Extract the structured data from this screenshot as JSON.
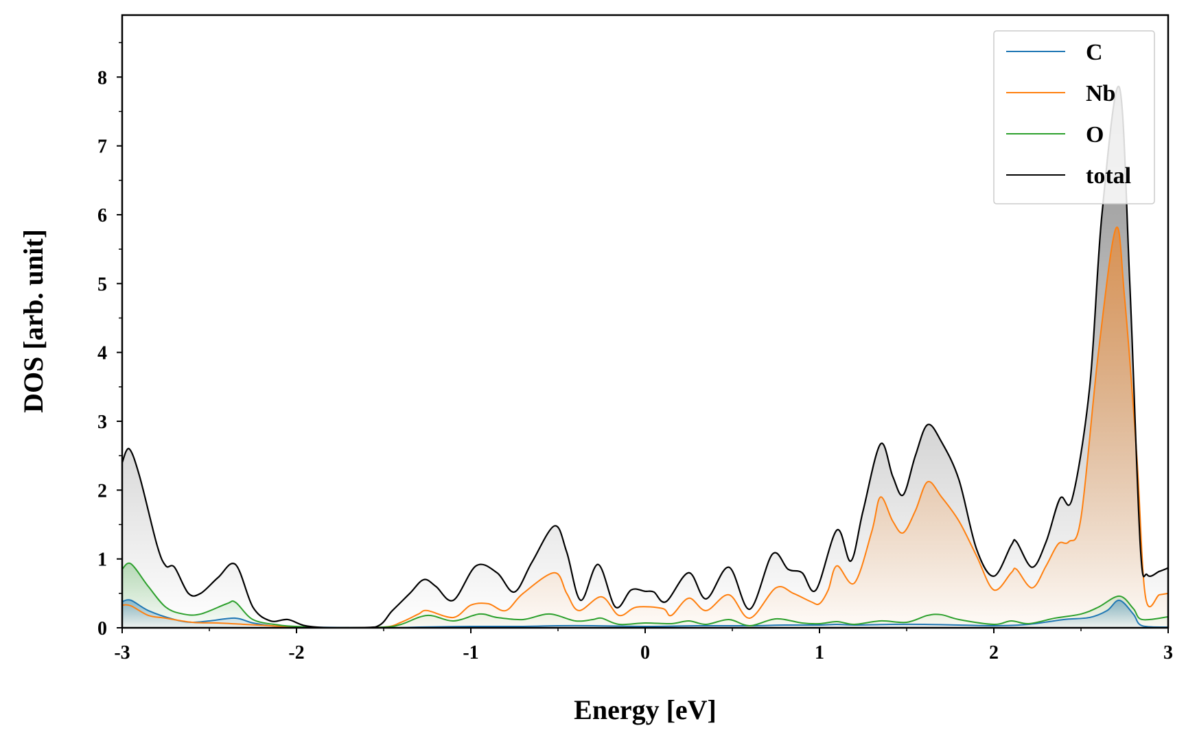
{
  "chart_data": {
    "type": "line",
    "xlabel": "Energy [eV]",
    "ylabel": "DOS [arb. unit]",
    "xlim": [
      -3,
      3
    ],
    "ylim": [
      0,
      8.9
    ],
    "x_ticks": [
      "-3",
      "-2",
      "-1",
      "0",
      "1",
      "2",
      "3"
    ],
    "y_ticks": [
      "0",
      "1",
      "2",
      "3",
      "4",
      "5",
      "6",
      "7",
      "8"
    ],
    "grid": false,
    "legend_position": "top-right",
    "filled_under_curves": true,
    "series": [
      {
        "name": "C",
        "color": "#1f77b4",
        "points": [
          [
            -3.0,
            0.38
          ],
          [
            -2.95,
            0.4
          ],
          [
            -2.85,
            0.25
          ],
          [
            -2.7,
            0.12
          ],
          [
            -2.6,
            0.08
          ],
          [
            -2.5,
            0.1
          ],
          [
            -2.35,
            0.14
          ],
          [
            -2.25,
            0.07
          ],
          [
            -2.1,
            0.02
          ],
          [
            -1.95,
            0.01
          ],
          [
            -1.5,
            0.0
          ],
          [
            -1.3,
            0.01
          ],
          [
            -1.0,
            0.02
          ],
          [
            -0.7,
            0.02
          ],
          [
            -0.5,
            0.03
          ],
          [
            -0.3,
            0.03
          ],
          [
            0.0,
            0.02
          ],
          [
            0.3,
            0.03
          ],
          [
            0.6,
            0.03
          ],
          [
            0.8,
            0.04
          ],
          [
            1.0,
            0.04
          ],
          [
            1.1,
            0.05
          ],
          [
            1.2,
            0.04
          ],
          [
            1.4,
            0.05
          ],
          [
            1.6,
            0.05
          ],
          [
            1.8,
            0.04
          ],
          [
            2.0,
            0.03
          ],
          [
            2.2,
            0.05
          ],
          [
            2.4,
            0.12
          ],
          [
            2.55,
            0.15
          ],
          [
            2.65,
            0.25
          ],
          [
            2.72,
            0.4
          ],
          [
            2.8,
            0.2
          ],
          [
            2.85,
            0.03
          ],
          [
            3.0,
            0.01
          ]
        ]
      },
      {
        "name": "Nb",
        "color": "#ff7f0e",
        "points": [
          [
            -3.0,
            0.33
          ],
          [
            -2.95,
            0.32
          ],
          [
            -2.85,
            0.18
          ],
          [
            -2.75,
            0.14
          ],
          [
            -2.6,
            0.08
          ],
          [
            -2.45,
            0.07
          ],
          [
            -2.3,
            0.05
          ],
          [
            -2.15,
            0.03
          ],
          [
            -2.0,
            0.01
          ],
          [
            -1.8,
            0.0
          ],
          [
            -1.5,
            0.01
          ],
          [
            -1.4,
            0.08
          ],
          [
            -1.3,
            0.2
          ],
          [
            -1.25,
            0.25
          ],
          [
            -1.1,
            0.15
          ],
          [
            -1.0,
            0.33
          ],
          [
            -0.9,
            0.35
          ],
          [
            -0.8,
            0.25
          ],
          [
            -0.7,
            0.5
          ],
          [
            -0.52,
            0.8
          ],
          [
            -0.45,
            0.5
          ],
          [
            -0.38,
            0.25
          ],
          [
            -0.25,
            0.45
          ],
          [
            -0.15,
            0.18
          ],
          [
            -0.05,
            0.3
          ],
          [
            0.1,
            0.28
          ],
          [
            0.15,
            0.18
          ],
          [
            0.25,
            0.43
          ],
          [
            0.35,
            0.25
          ],
          [
            0.48,
            0.48
          ],
          [
            0.6,
            0.14
          ],
          [
            0.75,
            0.58
          ],
          [
            0.85,
            0.5
          ],
          [
            0.95,
            0.38
          ],
          [
            1.0,
            0.35
          ],
          [
            1.05,
            0.55
          ],
          [
            1.1,
            0.9
          ],
          [
            1.2,
            0.65
          ],
          [
            1.3,
            1.4
          ],
          [
            1.35,
            1.9
          ],
          [
            1.42,
            1.55
          ],
          [
            1.48,
            1.38
          ],
          [
            1.55,
            1.7
          ],
          [
            1.62,
            2.12
          ],
          [
            1.7,
            1.9
          ],
          [
            1.8,
            1.55
          ],
          [
            1.9,
            1.05
          ],
          [
            2.0,
            0.55
          ],
          [
            2.1,
            0.8
          ],
          [
            2.13,
            0.85
          ],
          [
            2.22,
            0.58
          ],
          [
            2.3,
            0.9
          ],
          [
            2.37,
            1.22
          ],
          [
            2.43,
            1.25
          ],
          [
            2.5,
            1.6
          ],
          [
            2.6,
            4.0
          ],
          [
            2.7,
            5.8
          ],
          [
            2.75,
            4.8
          ],
          [
            2.82,
            2.5
          ],
          [
            2.87,
            0.45
          ],
          [
            2.95,
            0.48
          ],
          [
            3.0,
            0.5
          ]
        ]
      },
      {
        "name": "O",
        "color": "#2ca02c",
        "points": [
          [
            -3.0,
            0.85
          ],
          [
            -2.95,
            0.93
          ],
          [
            -2.85,
            0.6
          ],
          [
            -2.75,
            0.3
          ],
          [
            -2.65,
            0.2
          ],
          [
            -2.55,
            0.2
          ],
          [
            -2.4,
            0.35
          ],
          [
            -2.35,
            0.37
          ],
          [
            -2.25,
            0.12
          ],
          [
            -2.1,
            0.04
          ],
          [
            -2.0,
            0.02
          ],
          [
            -1.8,
            0.0
          ],
          [
            -1.5,
            0.01
          ],
          [
            -1.4,
            0.05
          ],
          [
            -1.25,
            0.18
          ],
          [
            -1.1,
            0.1
          ],
          [
            -0.95,
            0.2
          ],
          [
            -0.85,
            0.15
          ],
          [
            -0.7,
            0.12
          ],
          [
            -0.55,
            0.2
          ],
          [
            -0.4,
            0.1
          ],
          [
            -0.3,
            0.12
          ],
          [
            -0.25,
            0.14
          ],
          [
            -0.15,
            0.05
          ],
          [
            0.0,
            0.07
          ],
          [
            0.15,
            0.06
          ],
          [
            0.25,
            0.1
          ],
          [
            0.35,
            0.05
          ],
          [
            0.48,
            0.12
          ],
          [
            0.6,
            0.03
          ],
          [
            0.75,
            0.13
          ],
          [
            0.9,
            0.07
          ],
          [
            1.0,
            0.06
          ],
          [
            1.1,
            0.09
          ],
          [
            1.2,
            0.05
          ],
          [
            1.35,
            0.1
          ],
          [
            1.5,
            0.08
          ],
          [
            1.62,
            0.18
          ],
          [
            1.7,
            0.19
          ],
          [
            1.8,
            0.12
          ],
          [
            2.0,
            0.05
          ],
          [
            2.1,
            0.1
          ],
          [
            2.2,
            0.06
          ],
          [
            2.35,
            0.14
          ],
          [
            2.5,
            0.2
          ],
          [
            2.6,
            0.3
          ],
          [
            2.72,
            0.46
          ],
          [
            2.8,
            0.28
          ],
          [
            2.85,
            0.12
          ],
          [
            3.0,
            0.16
          ]
        ]
      },
      {
        "name": "total",
        "color": "#000000",
        "points": [
          [
            -3.0,
            2.4
          ],
          [
            -2.96,
            2.6
          ],
          [
            -2.9,
            2.2
          ],
          [
            -2.8,
            1.2
          ],
          [
            -2.75,
            0.9
          ],
          [
            -2.7,
            0.88
          ],
          [
            -2.62,
            0.5
          ],
          [
            -2.55,
            0.5
          ],
          [
            -2.45,
            0.73
          ],
          [
            -2.35,
            0.92
          ],
          [
            -2.25,
            0.3
          ],
          [
            -2.15,
            0.1
          ],
          [
            -2.05,
            0.12
          ],
          [
            -1.95,
            0.03
          ],
          [
            -1.8,
            0.0
          ],
          [
            -1.55,
            0.01
          ],
          [
            -1.45,
            0.25
          ],
          [
            -1.35,
            0.5
          ],
          [
            -1.27,
            0.7
          ],
          [
            -1.2,
            0.6
          ],
          [
            -1.1,
            0.4
          ],
          [
            -0.97,
            0.9
          ],
          [
            -0.85,
            0.8
          ],
          [
            -0.75,
            0.52
          ],
          [
            -0.65,
            0.95
          ],
          [
            -0.52,
            1.48
          ],
          [
            -0.45,
            1.1
          ],
          [
            -0.37,
            0.4
          ],
          [
            -0.27,
            0.92
          ],
          [
            -0.17,
            0.3
          ],
          [
            -0.08,
            0.55
          ],
          [
            0.0,
            0.53
          ],
          [
            0.05,
            0.52
          ],
          [
            0.12,
            0.38
          ],
          [
            0.25,
            0.8
          ],
          [
            0.35,
            0.42
          ],
          [
            0.48,
            0.88
          ],
          [
            0.6,
            0.27
          ],
          [
            0.73,
            1.07
          ],
          [
            0.82,
            0.85
          ],
          [
            0.9,
            0.8
          ],
          [
            0.98,
            0.55
          ],
          [
            1.1,
            1.42
          ],
          [
            1.18,
            0.97
          ],
          [
            1.25,
            1.7
          ],
          [
            1.35,
            2.67
          ],
          [
            1.42,
            2.2
          ],
          [
            1.48,
            1.93
          ],
          [
            1.55,
            2.5
          ],
          [
            1.62,
            2.95
          ],
          [
            1.7,
            2.7
          ],
          [
            1.8,
            2.15
          ],
          [
            1.9,
            1.15
          ],
          [
            2.0,
            0.75
          ],
          [
            2.1,
            1.2
          ],
          [
            2.13,
            1.25
          ],
          [
            2.22,
            0.88
          ],
          [
            2.3,
            1.25
          ],
          [
            2.38,
            1.88
          ],
          [
            2.45,
            1.88
          ],
          [
            2.55,
            3.5
          ],
          [
            2.62,
            6.0
          ],
          [
            2.72,
            7.85
          ],
          [
            2.78,
            5.0
          ],
          [
            2.84,
            1.2
          ],
          [
            2.88,
            0.77
          ],
          [
            2.95,
            0.82
          ],
          [
            3.0,
            0.87
          ]
        ]
      }
    ]
  }
}
